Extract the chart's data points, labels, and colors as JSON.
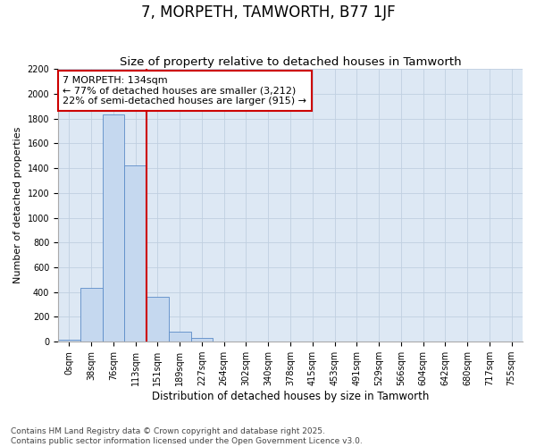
{
  "title": "7, MORPETH, TAMWORTH, B77 1JF",
  "subtitle": "Size of property relative to detached houses in Tamworth",
  "xlabel": "Distribution of detached houses by size in Tamworth",
  "ylabel": "Number of detached properties",
  "categories": [
    "0sqm",
    "38sqm",
    "76sqm",
    "113sqm",
    "151sqm",
    "189sqm",
    "227sqm",
    "264sqm",
    "302sqm",
    "340sqm",
    "378sqm",
    "415sqm",
    "453sqm",
    "491sqm",
    "529sqm",
    "566sqm",
    "604sqm",
    "642sqm",
    "680sqm",
    "717sqm",
    "755sqm"
  ],
  "bar_heights": [
    15,
    435,
    1830,
    1420,
    360,
    80,
    30,
    0,
    0,
    0,
    0,
    0,
    0,
    0,
    0,
    0,
    0,
    0,
    0,
    0,
    0
  ],
  "bar_color": "#c5d8ef",
  "bar_edge_color": "#5b8cc8",
  "grid_color": "#c0cfe0",
  "background_color": "#dde8f4",
  "vline_color": "#cc0000",
  "vline_position": 3.5,
  "annotation_text": "7 MORPETH: 134sqm\n← 77% of detached houses are smaller (3,212)\n22% of semi-detached houses are larger (915) →",
  "annotation_box_edgecolor": "#cc0000",
  "ylim": [
    0,
    2200
  ],
  "yticks": [
    0,
    200,
    400,
    600,
    800,
    1000,
    1200,
    1400,
    1600,
    1800,
    2000,
    2200
  ],
  "footer": "Contains HM Land Registry data © Crown copyright and database right 2025.\nContains public sector information licensed under the Open Government Licence v3.0.",
  "title_fontsize": 12,
  "subtitle_fontsize": 9.5,
  "tick_fontsize": 7,
  "ylabel_fontsize": 8,
  "xlabel_fontsize": 8.5,
  "annotation_fontsize": 8,
  "footer_fontsize": 6.5
}
